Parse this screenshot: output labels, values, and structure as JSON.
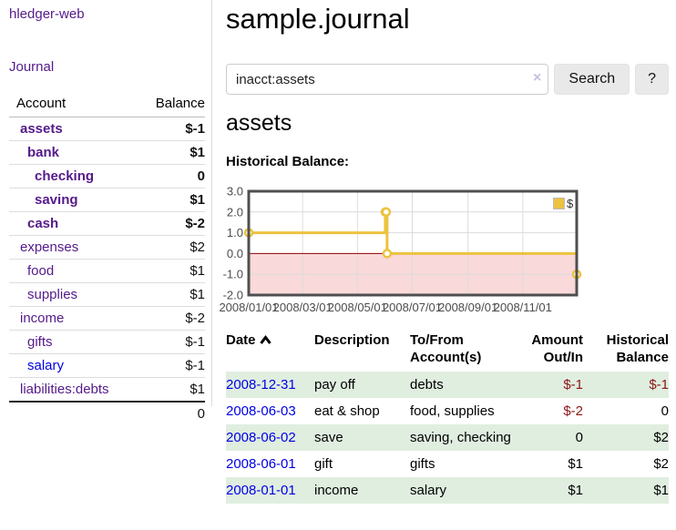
{
  "app": {
    "title": "hledger-web"
  },
  "sidebar": {
    "journal_link": "Journal",
    "accounts": {
      "headers": {
        "account": "Account",
        "balance": "Balance"
      },
      "rows": [
        {
          "name": "assets",
          "balance": "$-1"
        },
        {
          "name": "bank",
          "balance": "$1"
        },
        {
          "name": "checking",
          "balance": "0"
        },
        {
          "name": "saving",
          "balance": "$1"
        },
        {
          "name": "cash",
          "balance": "$-2"
        },
        {
          "name": "expenses",
          "balance": "$2"
        },
        {
          "name": "food",
          "balance": "$1"
        },
        {
          "name": "supplies",
          "balance": "$1"
        },
        {
          "name": "income",
          "balance": "$-2"
        },
        {
          "name": "gifts",
          "balance": "$-1"
        },
        {
          "name": "salary",
          "balance": "$-1"
        },
        {
          "name": "liabilities:debts",
          "balance": "$1"
        }
      ],
      "total": "0"
    }
  },
  "main": {
    "title": "sample.journal",
    "search": {
      "value": "inacct:assets",
      "clear": "×",
      "button": "Search",
      "help": "?"
    },
    "account_heading": "assets",
    "chart_label": "Historical Balance:"
  },
  "chart_data": {
    "type": "line",
    "title": "Historical Balance",
    "step": true,
    "x_range": [
      "2008-01-01",
      "2008-12-31"
    ],
    "ylim": [
      -2,
      3
    ],
    "yticks": [
      3.0,
      2.0,
      1.0,
      0.0,
      -1.0,
      -2.0
    ],
    "xticks": [
      "2008/01/01",
      "2008/03/01",
      "2008/05/01",
      "2008/07/01",
      "2008/09/01",
      "2008/11/01"
    ],
    "series": [
      {
        "name": "$",
        "color": "#edc240",
        "points": [
          [
            "2008-01-01",
            1
          ],
          [
            "2008-06-01",
            2
          ],
          [
            "2008-06-02",
            2
          ],
          [
            "2008-06-03",
            0
          ],
          [
            "2008-12-31",
            -1
          ]
        ]
      }
    ],
    "legend_position": "top-right",
    "grid": true,
    "grid_color": "#dcdcdc",
    "border_color": "#4f4f4f",
    "tick_color": "#4c4c4c",
    "negative_region_color": "#f9d9d9",
    "zero_line_color": "#8b0000"
  },
  "transactions": {
    "headers": {
      "date": "Date",
      "description": "Description",
      "accounts": "To/From Account(s)",
      "amount": "Amount Out/In",
      "balance": "Historical Balance"
    },
    "rows": [
      {
        "date": "2008-12-31",
        "description": "pay off",
        "accounts": "debts",
        "amount": "$-1",
        "balance": "$-1"
      },
      {
        "date": "2008-06-03",
        "description": "eat & shop",
        "accounts": "food, supplies",
        "amount": "$-2",
        "balance": "0"
      },
      {
        "date": "2008-06-02",
        "description": "save",
        "accounts": "saving, checking",
        "amount": "0",
        "balance": "$2"
      },
      {
        "date": "2008-06-01",
        "description": "gift",
        "accounts": "gifts",
        "amount": "$1",
        "balance": "$2"
      },
      {
        "date": "2008-01-01",
        "description": "income",
        "accounts": "salary",
        "amount": "$1",
        "balance": "$1"
      }
    ]
  },
  "colors": {
    "link_purple": "#551a8b",
    "link_blue": "#0000e6",
    "negative_strong": "#991717",
    "negative_dim": "#bb7272",
    "negative_table": "#8e1616",
    "row_green": "#e0eee0",
    "series_gold": "#edc240",
    "button_bg": "#e9e9e9"
  }
}
